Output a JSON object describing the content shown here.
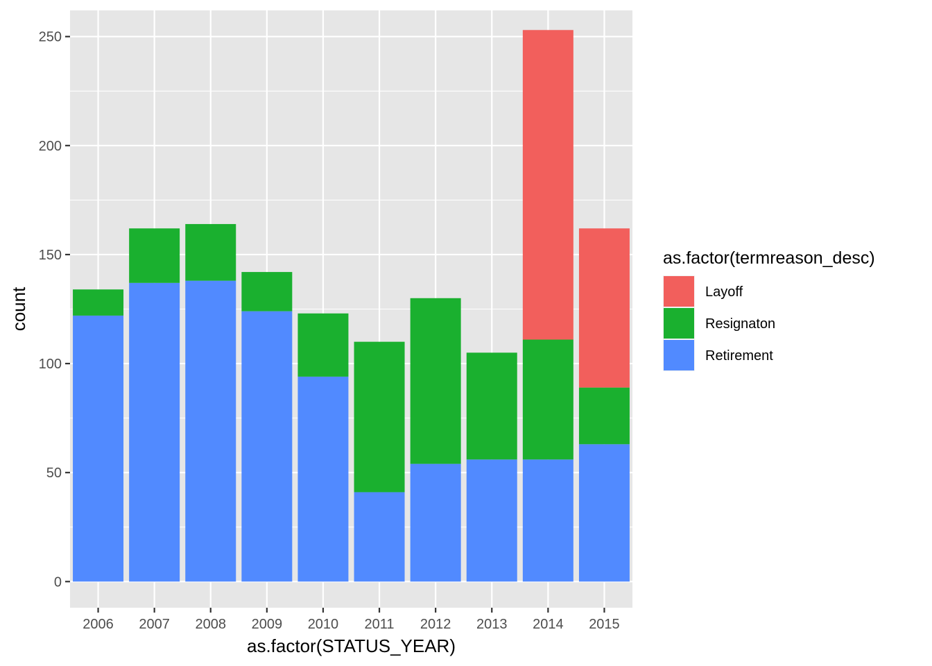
{
  "chart_data": {
    "type": "bar",
    "stacked": true,
    "xlabel": "as.factor(STATUS_YEAR)",
    "ylabel": "count",
    "ylim": [
      -12,
      262
    ],
    "y_ticks": [
      0,
      50,
      100,
      150,
      200,
      250
    ],
    "y_tick_labels": [
      "0",
      "50",
      "100",
      "150",
      "200",
      "250"
    ],
    "grid": true,
    "legend_position": "right",
    "legend_title": "as.factor(termreason_desc)",
    "categories": [
      "2006",
      "2007",
      "2008",
      "2009",
      "2010",
      "2011",
      "2012",
      "2013",
      "2014",
      "2015"
    ],
    "series": [
      {
        "name": "Retirement",
        "color": "#518AFF",
        "values": [
          122,
          137,
          138,
          124,
          94,
          41,
          54,
          56,
          56,
          63
        ]
      },
      {
        "name": "Resignaton",
        "color": "#1AB02F",
        "values": [
          12,
          25,
          26,
          18,
          29,
          69,
          76,
          49,
          55,
          26
        ]
      },
      {
        "name": "Layoff",
        "color": "#F25F5C",
        "values": [
          0,
          0,
          0,
          0,
          0,
          0,
          0,
          0,
          142,
          73
        ]
      }
    ],
    "legend_order": [
      "Layoff",
      "Resignaton",
      "Retirement"
    ],
    "panel_background": "#E6E6E6",
    "grid_color": "#FFFFFF"
  }
}
